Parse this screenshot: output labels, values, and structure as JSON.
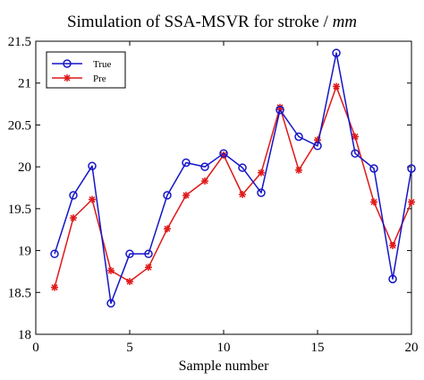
{
  "chart_data": {
    "type": "line",
    "title": "Simulation of SSA-MSVR for stroke / ",
    "title_unit": "mm",
    "xlabel": "Sample number",
    "ylabel": "",
    "xlim": [
      0,
      20
    ],
    "ylim": [
      18,
      21.5
    ],
    "x_ticks": [
      "0",
      "5",
      "10",
      "15",
      "20"
    ],
    "y_ticks": [
      "18",
      "18.5",
      "19",
      "19.5",
      "20",
      "20.5",
      "21",
      "21.5"
    ],
    "grid": false,
    "legend_position": "top-left",
    "x": [
      1,
      2,
      3,
      4,
      5,
      6,
      7,
      8,
      9,
      10,
      11,
      12,
      13,
      14,
      15,
      16,
      17,
      18,
      19,
      20
    ],
    "series": [
      {
        "name": "True",
        "color": "#1515c8",
        "marker": "circle",
        "values": [
          18.96,
          19.66,
          20.01,
          18.37,
          18.96,
          18.96,
          19.66,
          20.05,
          20.0,
          20.16,
          19.99,
          19.69,
          20.68,
          20.36,
          20.25,
          21.36,
          20.16,
          19.98,
          18.66,
          19.98
        ]
      },
      {
        "name": "Pre",
        "color": "#e01818",
        "marker": "asterisk",
        "values": [
          18.56,
          19.39,
          19.61,
          18.76,
          18.63,
          18.8,
          19.26,
          19.66,
          19.83,
          20.14,
          19.67,
          19.93,
          20.71,
          19.96,
          20.32,
          20.96,
          20.36,
          19.58,
          19.06,
          19.58
        ]
      }
    ]
  }
}
